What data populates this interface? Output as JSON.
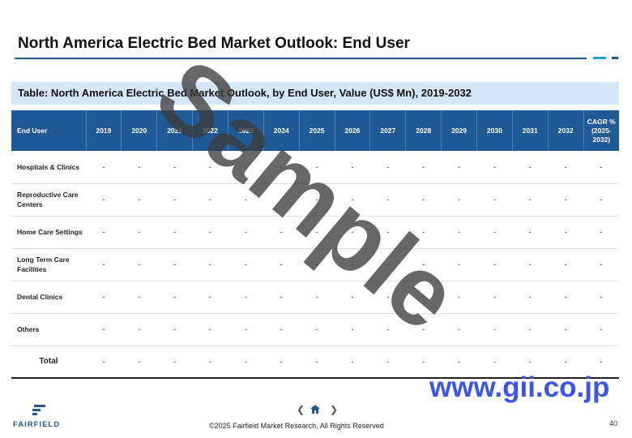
{
  "title": "North America Electric Bed Market Outlook: End User",
  "subtitle": "Table: North America Electric Bed Market Outlook, by End User, Value (US$ Mn), 2019-2032",
  "table": {
    "headers": [
      "End User",
      "2019",
      "2020",
      "2021",
      "2022",
      "2023",
      "2024",
      "2025",
      "2026",
      "2027",
      "2028",
      "2029",
      "2030",
      "2031",
      "2032",
      "CAGR % (2025-2032)"
    ],
    "rows": [
      {
        "label": "Hospitals & Clinics",
        "cells": [
          "-",
          "-",
          "-",
          "-",
          "-",
          "-",
          "-",
          "-",
          "-",
          "-",
          "-",
          "-",
          "-",
          "-",
          "-"
        ]
      },
      {
        "label": "Reproductive Care Centers",
        "cells": [
          "-",
          "-",
          "-",
          "-",
          "-",
          "-",
          "-",
          "-",
          "-",
          "-",
          "-",
          "-",
          "-",
          "-",
          "-"
        ]
      },
      {
        "label": "Home Care Settings",
        "cells": [
          "-",
          "-",
          "-",
          "-",
          "-",
          "-",
          "-",
          "-",
          "-",
          "-",
          "-",
          "-",
          "-",
          "-",
          "-"
        ]
      },
      {
        "label": "Long Term Care Facilities",
        "cells": [
          "-",
          "-",
          "-",
          "-",
          "-",
          "-",
          "-",
          "-",
          "-",
          "-",
          "-",
          "-",
          "-",
          "-",
          "-"
        ]
      },
      {
        "label": "Dental Clinics",
        "cells": [
          "-",
          "-",
          "-",
          "-",
          "-",
          "-",
          "-",
          "-",
          "-",
          "-",
          "-",
          "-",
          "-",
          "-",
          "-"
        ]
      },
      {
        "label": "Others",
        "cells": [
          "-",
          "-",
          "-",
          "-",
          "-",
          "-",
          "-",
          "-",
          "-",
          "-",
          "-",
          "-",
          "-",
          "-",
          "-"
        ]
      },
      {
        "label": "Total",
        "cells": [
          "-",
          "-",
          "-",
          "-",
          "-",
          "-",
          "-",
          "-",
          "-",
          "-",
          "-",
          "-",
          "-",
          "-",
          "-"
        ],
        "is_total": true
      }
    ]
  },
  "watermark": "Sample",
  "site_watermark": "www.gii.co.jp",
  "logo": {
    "text": "FAIRFIELD"
  },
  "nav": {
    "prev_icon": "chevron-left-icon",
    "home_icon": "home-icon",
    "next_icon": "chevron-right-icon"
  },
  "footer": {
    "copyright": "©2025 Fairfield Market Research, All Rights Reserved",
    "page_number": "40"
  },
  "colors": {
    "header_bg": "#1f5a96",
    "subtitle_bg": "#d5e6f7",
    "accent": "#1fa3dd",
    "site_watermark": "#3b55e6"
  }
}
